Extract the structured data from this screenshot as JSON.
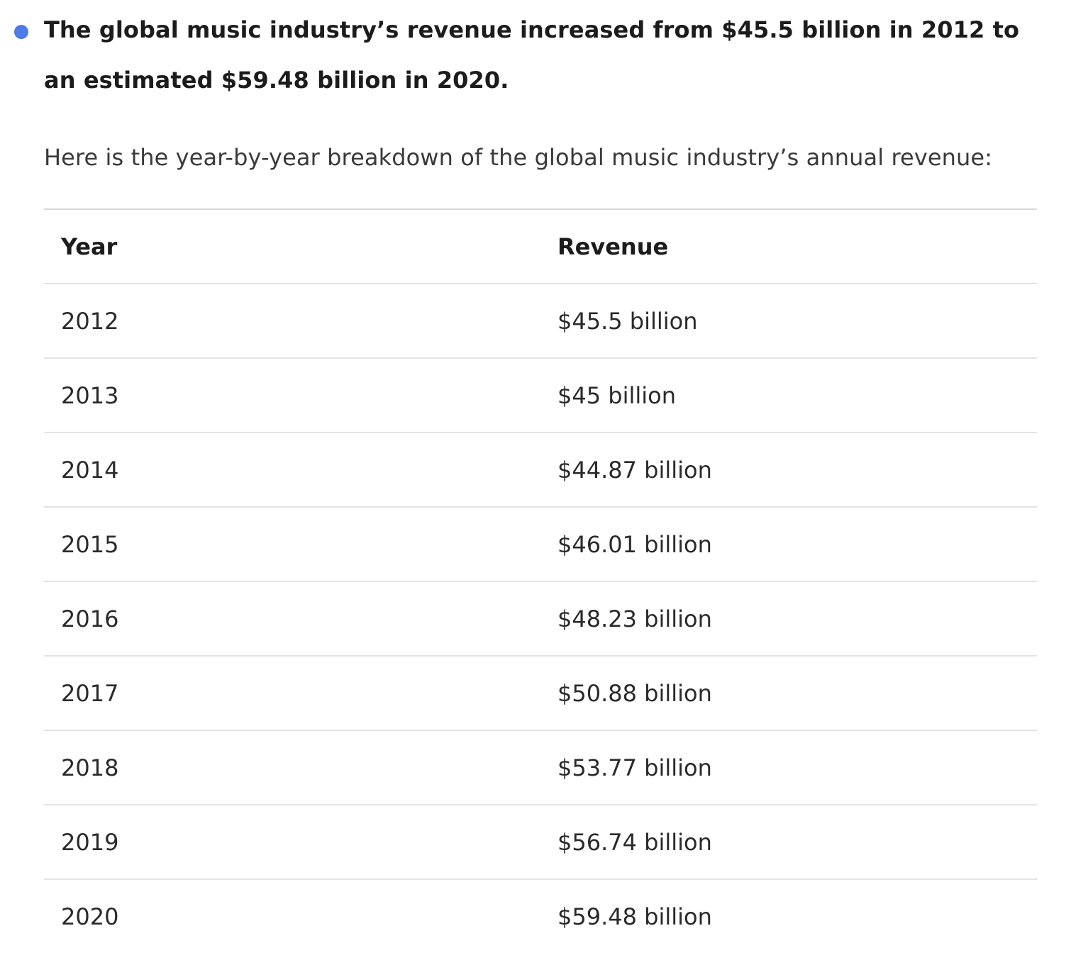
{
  "summary": {
    "key_fact": "The global music industry’s revenue increased from $45.5 billion in 2012 to an estimated $59.48 billion in 2020.",
    "bullet_color": "#4f7be8"
  },
  "intro": "Here is the year-by-year breakdown of the global music industry’s annual revenue:",
  "table": {
    "headers": [
      "Year",
      "Revenue"
    ],
    "rows": [
      {
        "year": "2012",
        "revenue": "$45.5 billion"
      },
      {
        "year": "2013",
        "revenue": "$45 billion"
      },
      {
        "year": "2014",
        "revenue": "$44.87 billion"
      },
      {
        "year": "2015",
        "revenue": "$46.01 billion"
      },
      {
        "year": "2016",
        "revenue": "$48.23 billion"
      },
      {
        "year": "2017",
        "revenue": "$50.88 billion"
      },
      {
        "year": "2018",
        "revenue": "$53.77 billion"
      },
      {
        "year": "2019",
        "revenue": "$56.74 billion"
      },
      {
        "year": "2020",
        "revenue": "$59.48 billion"
      }
    ]
  }
}
